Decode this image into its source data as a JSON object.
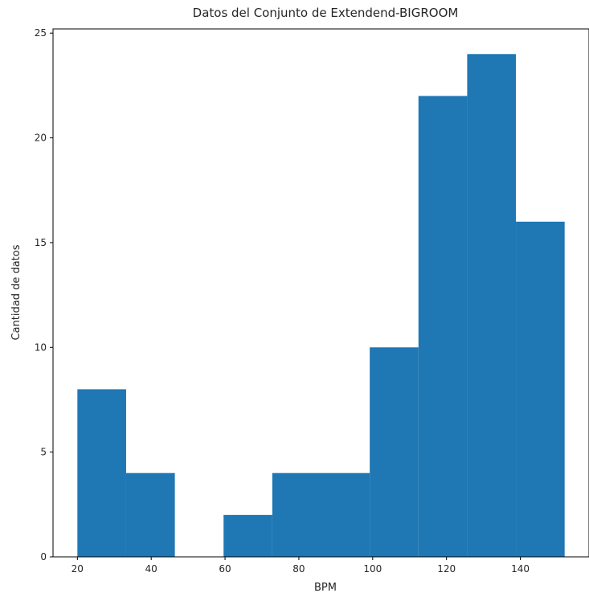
{
  "chart_data": {
    "type": "bar",
    "title": "Datos del Conjunto de Extendend-BIGROOM",
    "xlabel": "BPM",
    "ylabel": "Cantidad de datos",
    "bins": [
      {
        "x0": 20.0,
        "x1": 33.2,
        "count": 8
      },
      {
        "x0": 33.2,
        "x1": 46.4,
        "count": 4
      },
      {
        "x0": 46.4,
        "x1": 59.6,
        "count": 0
      },
      {
        "x0": 59.6,
        "x1": 72.8,
        "count": 2
      },
      {
        "x0": 72.8,
        "x1": 86.0,
        "count": 4
      },
      {
        "x0": 86.0,
        "x1": 99.2,
        "count": 4
      },
      {
        "x0": 99.2,
        "x1": 112.4,
        "count": 10
      },
      {
        "x0": 112.4,
        "x1": 125.6,
        "count": 22
      },
      {
        "x0": 125.6,
        "x1": 138.8,
        "count": 24
      },
      {
        "x0": 138.8,
        "x1": 152.0,
        "count": 16
      }
    ],
    "xlim": [
      13.4,
      158.6
    ],
    "ylim": [
      0,
      25.2
    ],
    "xticks": [
      20,
      40,
      60,
      80,
      100,
      120,
      140
    ],
    "yticks": [
      0,
      5,
      10,
      15,
      20,
      25
    ],
    "grid": false,
    "bar_color": "#1f77b4"
  }
}
